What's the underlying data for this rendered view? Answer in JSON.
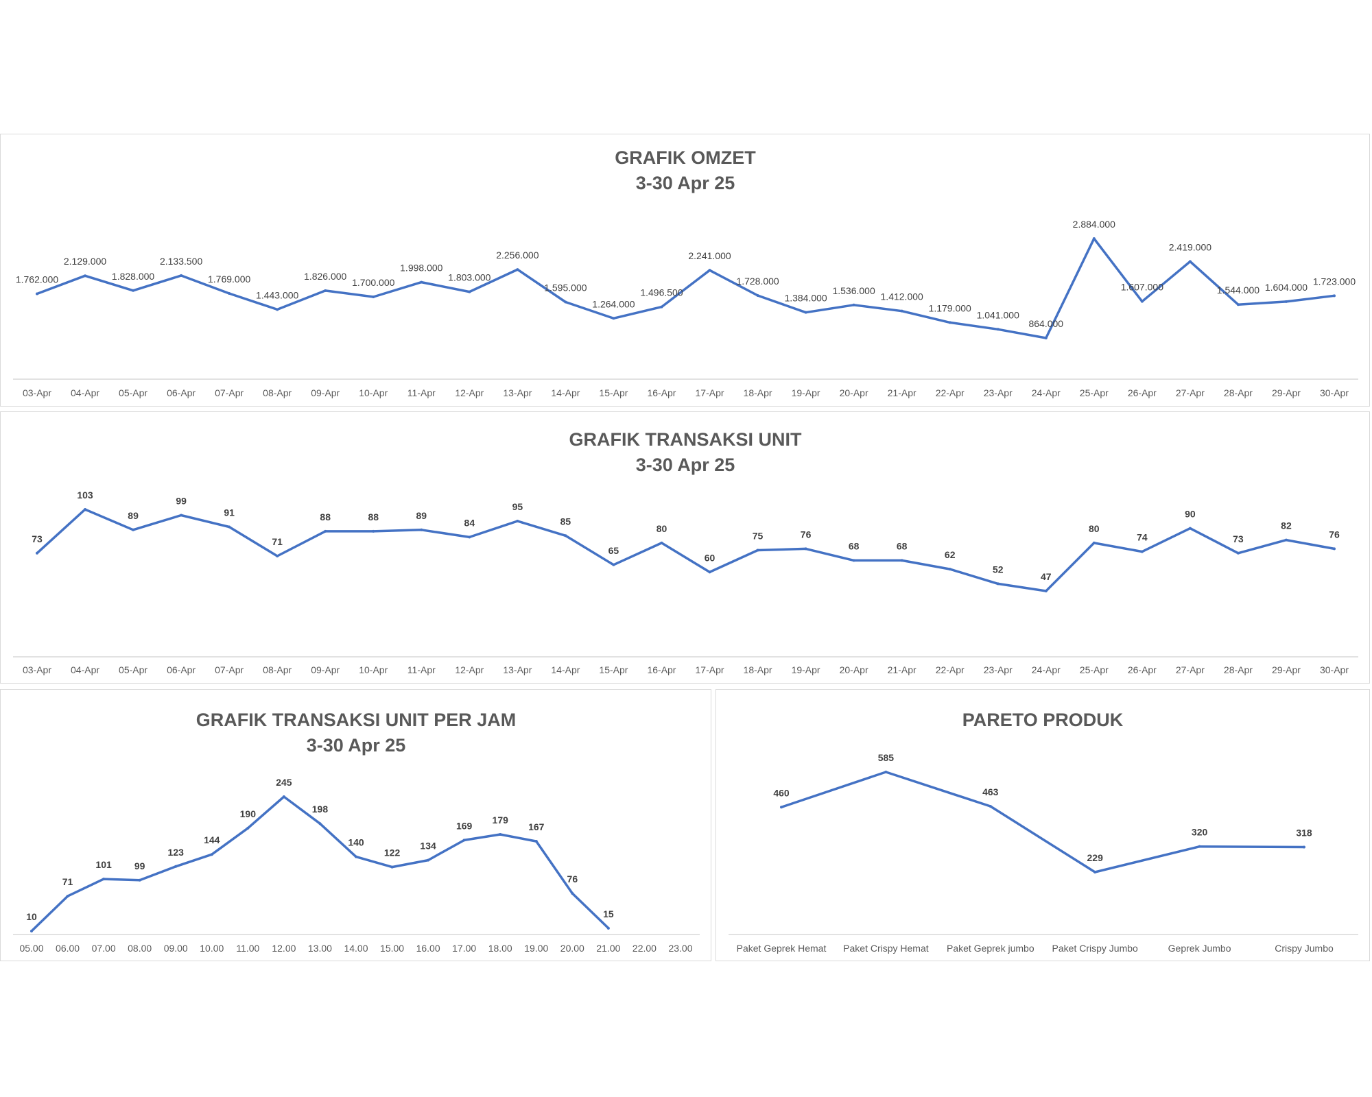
{
  "chart_data": [
    {
      "id": "omzet",
      "type": "line",
      "title": "GRAFIK OMZET",
      "subtitle": "3-30 Apr 25",
      "categories": [
        "03-Apr",
        "04-Apr",
        "05-Apr",
        "06-Apr",
        "07-Apr",
        "08-Apr",
        "09-Apr",
        "10-Apr",
        "11-Apr",
        "12-Apr",
        "13-Apr",
        "14-Apr",
        "15-Apr",
        "16-Apr",
        "17-Apr",
        "18-Apr",
        "19-Apr",
        "20-Apr",
        "21-Apr",
        "22-Apr",
        "23-Apr",
        "24-Apr",
        "25-Apr",
        "26-Apr",
        "27-Apr",
        "28-Apr",
        "29-Apr",
        "30-Apr"
      ],
      "values": [
        1762000,
        2129000,
        1828000,
        2133500,
        1769000,
        1443000,
        1826000,
        1700000,
        1998000,
        1803000,
        2256000,
        1595000,
        1264000,
        1496500,
        2241000,
        1728000,
        1384000,
        1536000,
        1412000,
        1179000,
        1041000,
        864000,
        2884000,
        1607000,
        2419000,
        1544000,
        1604000,
        1723000
      ],
      "labels": [
        "1.762.000",
        "2.129.000",
        "1.828.000",
        "2.133.500",
        "1.769.000",
        "1.443.000",
        "1.826.000",
        "1.700.000",
        "1.998.000",
        "1.803.000",
        "2.256.000",
        "1.595.000",
        "1.264.000",
        "1.496.500",
        "2.241.000",
        "1.728.000",
        "1.384.000",
        "1.536.000",
        "1.412.000",
        "1.179.000",
        "1.041.000",
        "864.000",
        "2.884.000",
        "1.607.000",
        "2.419.000",
        "1.544.000",
        "1.604.000",
        "1.723.000"
      ],
      "line_color": "#4472c4",
      "grid": false,
      "legend": "none"
    },
    {
      "id": "unit",
      "type": "line",
      "title": "GRAFIK TRANSAKSI UNIT",
      "subtitle": "3-30 Apr 25",
      "categories": [
        "03-Apr",
        "04-Apr",
        "05-Apr",
        "06-Apr",
        "07-Apr",
        "08-Apr",
        "09-Apr",
        "10-Apr",
        "11-Apr",
        "12-Apr",
        "13-Apr",
        "14-Apr",
        "15-Apr",
        "16-Apr",
        "17-Apr",
        "18-Apr",
        "19-Apr",
        "20-Apr",
        "21-Apr",
        "22-Apr",
        "23-Apr",
        "24-Apr",
        "25-Apr",
        "26-Apr",
        "27-Apr",
        "28-Apr",
        "29-Apr",
        "30-Apr"
      ],
      "values": [
        73,
        103,
        89,
        99,
        91,
        71,
        88,
        88,
        89,
        84,
        95,
        85,
        65,
        80,
        60,
        75,
        76,
        68,
        68,
        62,
        52,
        47,
        80,
        74,
        90,
        73,
        82,
        76
      ],
      "line_color": "#4472c4",
      "grid": false,
      "legend": "none"
    },
    {
      "id": "jam",
      "type": "line",
      "title": "GRAFIK TRANSAKSI UNIT PER JAM",
      "subtitle": "3-30 Apr 25",
      "categories": [
        "05.00",
        "06.00",
        "07.00",
        "08.00",
        "09.00",
        "10.00",
        "11.00",
        "12.00",
        "13.00",
        "14.00",
        "15.00",
        "16.00",
        "17.00",
        "18.00",
        "19.00",
        "20.00",
        "21.00",
        "22.00",
        "23.00"
      ],
      "values": [
        10,
        71,
        101,
        99,
        123,
        144,
        190,
        245,
        198,
        140,
        122,
        134,
        169,
        179,
        167,
        76,
        15,
        null,
        null
      ],
      "line_color": "#4472c4",
      "grid": false,
      "legend": "none"
    },
    {
      "id": "pareto",
      "type": "line",
      "title": "PARETO PRODUK",
      "subtitle": "",
      "categories": [
        "Paket Geprek Hemat",
        "Paket Crispy Hemat",
        "Paket Geprek jumbo",
        "Paket Crispy Jumbo",
        "Geprek Jumbo",
        "Crispy Jumbo"
      ],
      "values": [
        460,
        585,
        463,
        229,
        320,
        318
      ],
      "line_color": "#4472c4",
      "grid": false,
      "legend": "none"
    }
  ]
}
